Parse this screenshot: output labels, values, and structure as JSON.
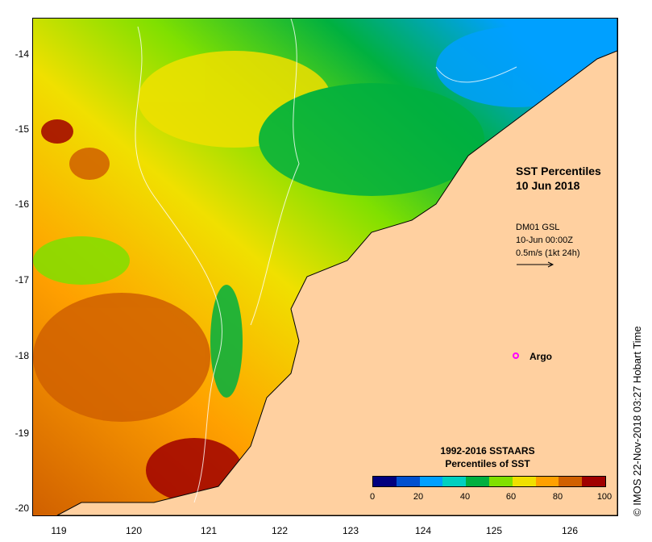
{
  "map": {
    "title_line1": "SST Percentiles",
    "title_line2": "10 Jun 2018",
    "current_source": "DM01 GSL",
    "current_time": "10-Jun 00:00Z",
    "current_scale": "0.5m/s (1kt 24h)",
    "argo_label": "Argo",
    "legend_title1": "1992-2016 SSTAARS",
    "legend_title2": "Percentiles of SST",
    "credit": "© IMOS 22-Nov-2018 03:27 Hobart Time",
    "lat_labels": [
      "-14",
      "-15",
      "-16",
      "-17",
      "-18",
      "-19",
      "-20"
    ],
    "lon_labels": [
      "119",
      "120",
      "121",
      "122",
      "123",
      "124",
      "125",
      "126"
    ],
    "colorbar_labels": [
      "0",
      "20",
      "40",
      "60",
      "80",
      "100"
    ],
    "colorbar_colors": [
      "#00007f",
      "#0050d0",
      "#00a0ff",
      "#00d0c0",
      "#00b040",
      "#80e000",
      "#f0e000",
      "#ffa000",
      "#d06000",
      "#a00000"
    ],
    "land_color": "#ffd0a0",
    "argo_color": "#ff00ff"
  }
}
